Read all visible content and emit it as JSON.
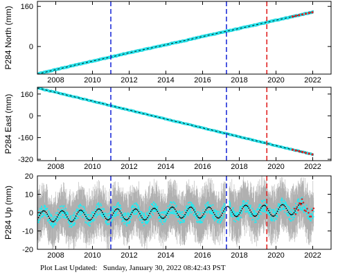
{
  "colors": {
    "data": "#25e9f0",
    "data_edge": "#0fc8d2",
    "model": "#000000",
    "recent": "#e02020",
    "error_bar": "#b0b0b0",
    "event_blue": "#1f2ed8",
    "event_red": "#e02020"
  },
  "events": [
    {
      "year": 2011.0,
      "color": "blue"
    },
    {
      "year": 2017.3,
      "color": "blue"
    },
    {
      "year": 2019.5,
      "color": "red"
    }
  ],
  "x_axis": {
    "xlim": [
      2007.0,
      2023.0
    ],
    "ticks": [
      2008,
      2010,
      2012,
      2014,
      2016,
      2018,
      2020,
      2022
    ]
  },
  "chart_data": [
    {
      "type": "scatter",
      "title": "",
      "ylabel": "P284 North (mm)",
      "xlim": [
        2007.0,
        2023.0
      ],
      "ylim": [
        -110,
        180
      ],
      "yticks": [
        0,
        160
      ],
      "grid": false,
      "series": [
        {
          "x": [
            2007.0,
            2008.0,
            2009.0,
            2010.0,
            2011.0,
            2012.0,
            2013.0,
            2014.0,
            2015.0,
            2016.0,
            2017.0,
            2018.0,
            2019.0,
            2020.0,
            2021.0,
            2022.0
          ],
          "values": [
            -110,
            -92,
            -75,
            -58,
            -42,
            -25,
            -9,
            7,
            23,
            40,
            56,
            72,
            88,
            105,
            121,
            137
          ]
        }
      ],
      "scatter_stroke": 3.2
    },
    {
      "type": "scatter",
      "title": "",
      "ylabel": "P284 East (mm)",
      "xlim": [
        2007.0,
        2023.0
      ],
      "ylim": [
        -330,
        210
      ],
      "yticks": [
        -320,
        -160,
        0,
        160
      ],
      "grid": false,
      "series": [
        {
          "x": [
            2007.0,
            2008.0,
            2009.0,
            2010.0,
            2011.0,
            2012.0,
            2013.0,
            2014.0,
            2015.0,
            2016.0,
            2017.0,
            2018.0,
            2019.0,
            2020.0,
            2021.0,
            2022.0
          ],
          "values": [
            205,
            172,
            140,
            108,
            75,
            42,
            9,
            -24,
            -56,
            -89,
            -121,
            -154,
            -187,
            -220,
            -252,
            -285
          ]
        }
      ],
      "scatter_stroke": 2.6
    },
    {
      "type": "scatter",
      "title": "",
      "ylabel": "P284 Up (mm)",
      "xlim": [
        2007.0,
        2023.0
      ],
      "ylim": [
        -20,
        20
      ],
      "yticks": [
        -20,
        -10,
        0,
        10,
        20
      ],
      "grid": false,
      "series": [
        {
          "x": [
            2007.0,
            2008.0,
            2009.0,
            2010.0,
            2011.0,
            2012.0,
            2013.0,
            2014.0,
            2015.0,
            2016.0,
            2017.0,
            2018.0,
            2019.0,
            2020.0,
            2021.0,
            2022.0
          ],
          "values": [
            -2,
            -2,
            -2,
            -1,
            -1,
            -1,
            -1,
            0,
            0,
            0,
            0,
            1,
            1,
            1,
            2,
            2
          ]
        }
      ],
      "seasonal_amplitude": 3,
      "scatter_spread": 5,
      "error_spread": 10
    }
  ],
  "footer": {
    "label": "Plot Last Updated:",
    "timestamp": "Sunday, January 30, 2022 08:42:43 PST"
  }
}
